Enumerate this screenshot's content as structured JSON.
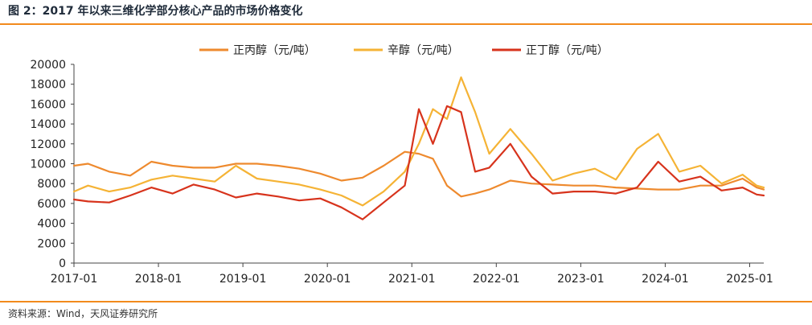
{
  "figure": {
    "title": "图 2：2017 年以来三维化学部分核心产品的市场价格变化",
    "source": "资料来源：Wind，天风证券研究所"
  },
  "colors": {
    "accent": "#f28a1c"
  },
  "chart_data": {
    "type": "line",
    "title": "",
    "xlabel": "",
    "ylabel": "",
    "x_tick_labels": [
      "2017-01",
      "2018-01",
      "2019-01",
      "2020-01",
      "2021-01",
      "2022-01",
      "2023-01",
      "2024-01",
      "2025-01"
    ],
    "x_range": [
      "2017-01",
      "2025-03"
    ],
    "ylim": [
      0,
      20000
    ],
    "y_ticks": [
      0,
      2000,
      4000,
      6000,
      8000,
      10000,
      12000,
      14000,
      16000,
      18000,
      20000
    ],
    "grid": false,
    "legend_position": "top",
    "series": [
      {
        "name": "正丙醇（元/吨）",
        "color": "#ee8a2e",
        "points": [
          [
            "2017-01",
            9800
          ],
          [
            "2017-03",
            10000
          ],
          [
            "2017-06",
            9200
          ],
          [
            "2017-09",
            8800
          ],
          [
            "2017-12",
            10200
          ],
          [
            "2018-03",
            9800
          ],
          [
            "2018-06",
            9600
          ],
          [
            "2018-09",
            9600
          ],
          [
            "2018-12",
            10000
          ],
          [
            "2019-03",
            10000
          ],
          [
            "2019-06",
            9800
          ],
          [
            "2019-09",
            9500
          ],
          [
            "2019-12",
            9000
          ],
          [
            "2020-03",
            8300
          ],
          [
            "2020-06",
            8600
          ],
          [
            "2020-09",
            9800
          ],
          [
            "2020-12",
            11200
          ],
          [
            "2021-02",
            11000
          ],
          [
            "2021-04",
            10500
          ],
          [
            "2021-06",
            7800
          ],
          [
            "2021-08",
            6700
          ],
          [
            "2021-10",
            7000
          ],
          [
            "2021-12",
            7400
          ],
          [
            "2022-03",
            8300
          ],
          [
            "2022-06",
            8000
          ],
          [
            "2022-09",
            7900
          ],
          [
            "2022-12",
            7800
          ],
          [
            "2023-03",
            7800
          ],
          [
            "2023-06",
            7600
          ],
          [
            "2023-09",
            7500
          ],
          [
            "2023-12",
            7400
          ],
          [
            "2024-03",
            7400
          ],
          [
            "2024-06",
            7800
          ],
          [
            "2024-09",
            7800
          ],
          [
            "2024-12",
            8500
          ],
          [
            "2025-02",
            7600
          ],
          [
            "2025-03",
            7400
          ]
        ]
      },
      {
        "name": "辛醇（元/吨）",
        "color": "#f5b335",
        "points": [
          [
            "2017-01",
            7200
          ],
          [
            "2017-03",
            7800
          ],
          [
            "2017-06",
            7200
          ],
          [
            "2017-09",
            7600
          ],
          [
            "2017-12",
            8400
          ],
          [
            "2018-03",
            8800
          ],
          [
            "2018-06",
            8500
          ],
          [
            "2018-09",
            8200
          ],
          [
            "2018-12",
            9800
          ],
          [
            "2019-03",
            8500
          ],
          [
            "2019-06",
            8200
          ],
          [
            "2019-09",
            7900
          ],
          [
            "2019-12",
            7400
          ],
          [
            "2020-03",
            6800
          ],
          [
            "2020-06",
            5800
          ],
          [
            "2020-09",
            7200
          ],
          [
            "2020-12",
            9200
          ],
          [
            "2021-02",
            12000
          ],
          [
            "2021-04",
            15500
          ],
          [
            "2021-06",
            14500
          ],
          [
            "2021-08",
            18700
          ],
          [
            "2021-10",
            15200
          ],
          [
            "2021-12",
            11000
          ],
          [
            "2022-03",
            13500
          ],
          [
            "2022-06",
            11000
          ],
          [
            "2022-09",
            8300
          ],
          [
            "2022-12",
            9000
          ],
          [
            "2023-03",
            9500
          ],
          [
            "2023-06",
            8400
          ],
          [
            "2023-09",
            11500
          ],
          [
            "2023-12",
            13000
          ],
          [
            "2024-03",
            9200
          ],
          [
            "2024-06",
            9800
          ],
          [
            "2024-09",
            8000
          ],
          [
            "2024-12",
            8900
          ],
          [
            "2025-02",
            7800
          ],
          [
            "2025-03",
            7600
          ]
        ]
      },
      {
        "name": "正丁醇（元/吨）",
        "color": "#d7331c",
        "points": [
          [
            "2017-01",
            6400
          ],
          [
            "2017-03",
            6200
          ],
          [
            "2017-06",
            6100
          ],
          [
            "2017-09",
            6800
          ],
          [
            "2017-12",
            7600
          ],
          [
            "2018-03",
            7000
          ],
          [
            "2018-06",
            7900
          ],
          [
            "2018-09",
            7400
          ],
          [
            "2018-12",
            6600
          ],
          [
            "2019-03",
            7000
          ],
          [
            "2019-06",
            6700
          ],
          [
            "2019-09",
            6300
          ],
          [
            "2019-12",
            6500
          ],
          [
            "2020-03",
            5600
          ],
          [
            "2020-06",
            4400
          ],
          [
            "2020-09",
            6100
          ],
          [
            "2020-12",
            7800
          ],
          [
            "2021-02",
            15500
          ],
          [
            "2021-04",
            12000
          ],
          [
            "2021-06",
            15800
          ],
          [
            "2021-08",
            15200
          ],
          [
            "2021-10",
            9200
          ],
          [
            "2021-12",
            9600
          ],
          [
            "2022-03",
            12000
          ],
          [
            "2022-06",
            8700
          ],
          [
            "2022-09",
            7000
          ],
          [
            "2022-12",
            7200
          ],
          [
            "2023-03",
            7200
          ],
          [
            "2023-06",
            7000
          ],
          [
            "2023-09",
            7600
          ],
          [
            "2023-12",
            10200
          ],
          [
            "2024-03",
            8200
          ],
          [
            "2024-06",
            8700
          ],
          [
            "2024-09",
            7300
          ],
          [
            "2024-12",
            7600
          ],
          [
            "2025-02",
            6900
          ],
          [
            "2025-03",
            6800
          ]
        ]
      }
    ]
  }
}
